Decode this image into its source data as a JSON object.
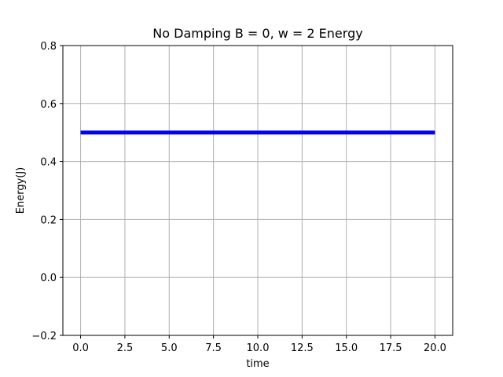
{
  "chart_data": {
    "type": "line",
    "title": "No Damping B = 0, w = 2 Energy",
    "xlabel": "time",
    "ylabel": "Energy(J)",
    "xlim": [
      -1.0,
      21.0
    ],
    "ylim": [
      -0.2,
      0.8
    ],
    "xticks": [
      0.0,
      2.5,
      5.0,
      7.5,
      10.0,
      12.5,
      15.0,
      17.5,
      20.0
    ],
    "xtick_labels": [
      "0.0",
      "2.5",
      "5.0",
      "7.5",
      "10.0",
      "12.5",
      "15.0",
      "17.5",
      "20.0"
    ],
    "yticks": [
      -0.2,
      0.0,
      0.2,
      0.4,
      0.6,
      0.8
    ],
    "ytick_labels": [
      "−0.2",
      "0.0",
      "0.2",
      "0.4",
      "0.6",
      "0.8"
    ],
    "grid": true,
    "series": [
      {
        "color": "#0000ff",
        "x": [
          0.0,
          20.0
        ],
        "y": [
          0.5,
          0.5
        ]
      }
    ]
  }
}
